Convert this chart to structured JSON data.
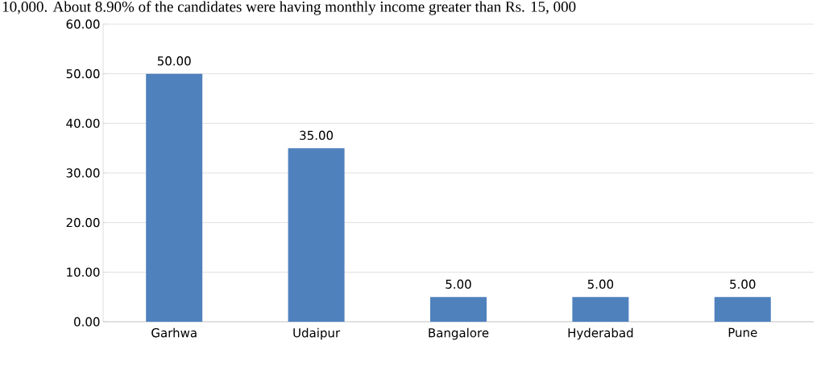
{
  "chart_data": {
    "type": "bar",
    "annotations": [
      "10,000. About 8.90% of the candidates were having monthly income greater than Rs. 15, 000"
    ],
    "categories": [
      "Garhwa",
      "Udaipur",
      "Bangalore",
      "Hyderabad",
      "Pune"
    ],
    "values": [
      50,
      35,
      5,
      5,
      5
    ],
    "value_labels": [
      "50.00",
      "35.00",
      "5.00",
      "5.00",
      "5.00"
    ],
    "color": "#4f81bd",
    "ylim": [
      0,
      60
    ],
    "yticks": [
      {
        "value": 0,
        "label": "0.00"
      },
      {
        "value": 10,
        "label": "10.00"
      },
      {
        "value": 20,
        "label": "20.00"
      },
      {
        "value": 30,
        "label": "30.00"
      },
      {
        "value": 40,
        "label": "40.00"
      },
      {
        "value": 50,
        "label": "50.00"
      },
      {
        "value": 60,
        "label": "60.00"
      }
    ],
    "grid": "y"
  }
}
